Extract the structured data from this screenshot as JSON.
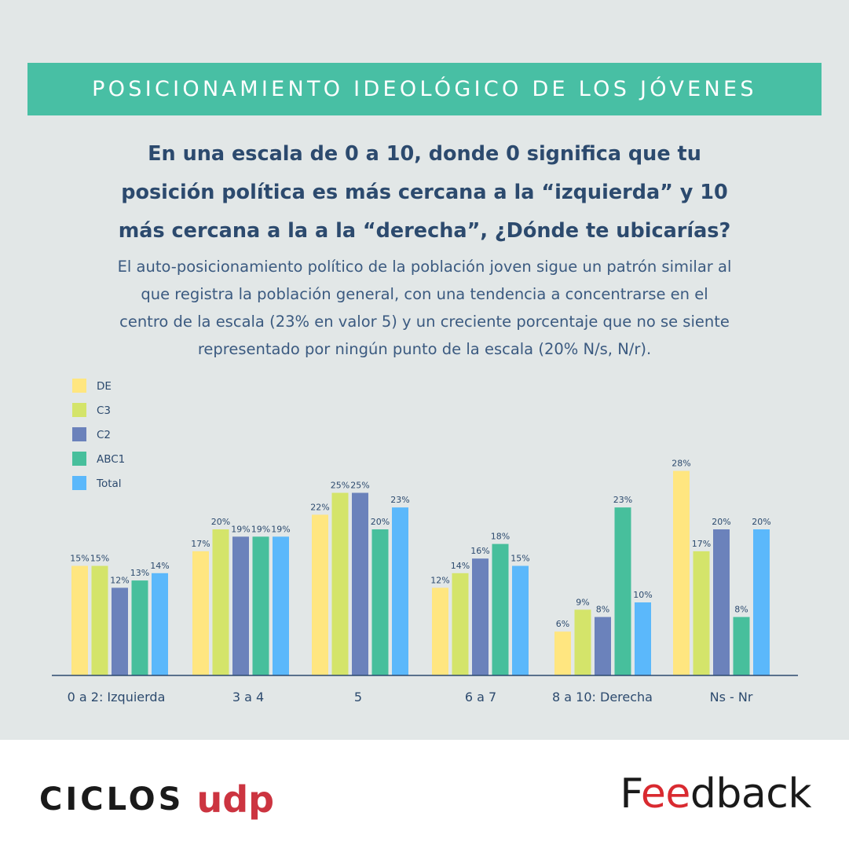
{
  "header": {
    "banner": "POSICIONAMIENTO IDEOLÓGICO DE LOS JÓVENES",
    "question": "En una escala de 0 a 10, donde 0 significa que tu\nposición política es más cercana a la “izquierda” y 10\nmás cercana a la a la “derecha”, ¿Dónde te ubicarías?",
    "subtitle": "El auto-posicionamiento político de la población joven sigue un patrón similar al\nque registra la población general, con una tendencia a concentrarse en el\ncentro de la escala (23% en valor 5) y un creciente porcentaje que no se siente\nrepresentado por ningún punto de la escala (20% N/s, N/r)."
  },
  "colors": {
    "panel_bg": "#e2e7e7",
    "banner_bg": "#48bfa4",
    "title_text": "#2c4a6e",
    "DE": "#ffe680",
    "C3": "#d4e46a",
    "C2": "#6b82bb",
    "ABC1": "#47bf9c",
    "Total": "#5bb8fb"
  },
  "chart_data": {
    "type": "bar",
    "categories": [
      "0 a 2: Izquierda",
      "3 a 4",
      "5",
      "6 a 7",
      "8 a 10: Derecha",
      "Ns - Nr"
    ],
    "series": [
      {
        "name": "DE",
        "values": [
          15,
          17,
          22,
          12,
          6,
          28
        ]
      },
      {
        "name": "C3",
        "values": [
          15,
          20,
          25,
          14,
          9,
          17
        ]
      },
      {
        "name": "C2",
        "values": [
          12,
          19,
          25,
          16,
          8,
          20
        ]
      },
      {
        "name": "ABC1",
        "values": [
          13,
          19,
          20,
          18,
          23,
          8
        ]
      },
      {
        "name": "Total",
        "values": [
          14,
          19,
          23,
          15,
          10,
          20
        ]
      }
    ],
    "value_suffix": "%",
    "legend_position": "top-left",
    "ylim": [
      0,
      28
    ],
    "grid": false
  },
  "footer": {
    "left_logo_word": "CICLOS",
    "left_logo_accent": "udp",
    "right_logo_accent": "ee",
    "right_logo_rest": "dback",
    "right_logo_first": "F"
  }
}
